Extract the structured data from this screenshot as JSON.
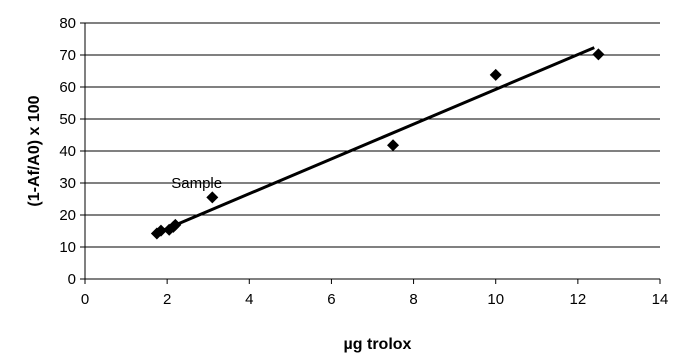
{
  "chart_data": {
    "type": "scatter",
    "title": "",
    "xlabel": "µg trolox",
    "ylabel": "(1-Af/A0) x 100",
    "xlim": [
      0,
      14
    ],
    "ylim": [
      0,
      80
    ],
    "xticks": [
      0,
      2,
      4,
      6,
      8,
      10,
      12,
      14
    ],
    "yticks": [
      0,
      10,
      20,
      30,
      40,
      50,
      60,
      70,
      80
    ],
    "grid": "horizontal",
    "legend": "none",
    "marker": "diamond",
    "colors": {
      "marker": "#000000",
      "line": "#000000",
      "grid": "#000000"
    },
    "points": [
      {
        "x": 1.75,
        "y": 14.2
      },
      {
        "x": 1.85,
        "y": 15.1
      },
      {
        "x": 2.05,
        "y": 15.4
      },
      {
        "x": 2.15,
        "y": 16.3
      },
      {
        "x": 2.2,
        "y": 16.9
      },
      {
        "x": 3.1,
        "y": 25.5
      },
      {
        "x": 7.5,
        "y": 41.8
      },
      {
        "x": 10.0,
        "y": 63.8
      },
      {
        "x": 12.5,
        "y": 70.2
      }
    ],
    "trendline": {
      "x": [
        1.8,
        12.4
      ],
      "y": [
        14.7,
        72.3
      ]
    },
    "annotations": [
      {
        "text": "Sample",
        "x": 2.1,
        "y": 28.5
      }
    ]
  }
}
